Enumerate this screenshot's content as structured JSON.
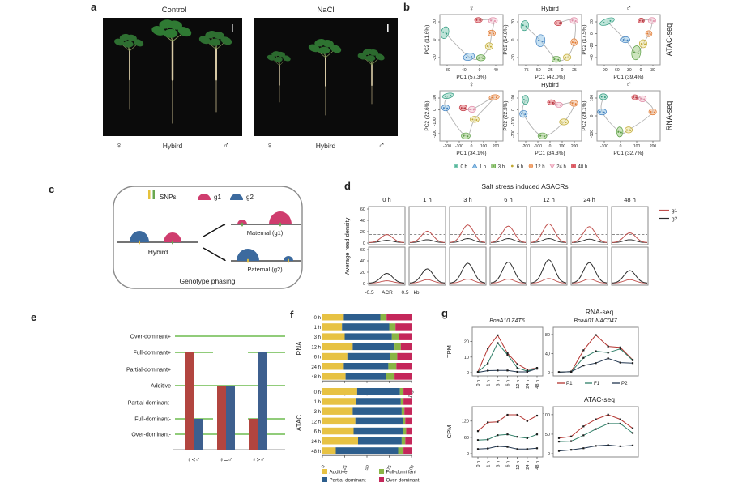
{
  "panels": {
    "a": "a",
    "b": "b",
    "c": "c",
    "d": "d",
    "e": "e",
    "f": "f",
    "g": "g"
  },
  "panel_a": {
    "photos": [
      {
        "title": "Control"
      },
      {
        "title": "NaCl"
      }
    ],
    "group_labels": [
      "♀",
      "Hybird",
      "♂"
    ]
  },
  "panel_b": {
    "row_labels": [
      "ATAC-seq",
      "RNA-seq"
    ]
  },
  "time_colors": [
    {
      "label": "0 h",
      "fill": "#7ecbb4",
      "dark": "#2f9a7f",
      "shape": "square"
    },
    {
      "label": "1 h",
      "fill": "#8ec3e8",
      "dark": "#3f7fbf",
      "shape": "triangle"
    },
    {
      "label": "3 h",
      "fill": "#9ccb7e",
      "dark": "#5a9e44",
      "shape": "square"
    },
    {
      "label": "6 h",
      "fill": "#ecdf8e",
      "dark": "#c0a832",
      "shape": "dot"
    },
    {
      "label": "12 h",
      "fill": "#f4ad7d",
      "dark": "#e07b33",
      "shape": "circle"
    },
    {
      "label": "24 h",
      "fill": "#f6c2d0",
      "dark": "#e08aa6",
      "shape": "triangle-down"
    },
    {
      "label": "48 h",
      "fill": "#e4636b",
      "dark": "#bf3640",
      "shape": "square"
    }
  ],
  "panel_c": {
    "legend": {
      "snps": "SNPs",
      "g1": "g1",
      "g2": "g2"
    },
    "hybrid_label": "Hybird",
    "maternal_label": "Maternal (g1)",
    "paternal_label": "Paternal (g2)",
    "caption": "Genotype phasing",
    "colors": {
      "g1": "#cf3d6e",
      "g2": "#3c6a9e",
      "snp_yellow": "#e6c23c",
      "snp_green": "#6aa84f"
    }
  },
  "panel_d": {
    "title": "Salt stress induced ASACRs",
    "ylabel": "Average read density",
    "timepoints": [
      "0 h",
      "1 h",
      "3 h",
      "6 h",
      "12 h",
      "24 h",
      "48 h"
    ],
    "yticks": [
      60,
      40,
      20,
      0
    ],
    "xaxis_parts": [
      "-0.5",
      "ACR",
      "0.5",
      "kb"
    ],
    "legend": [
      {
        "label": "g1",
        "color": "#c0504d"
      },
      {
        "label": "g2",
        "color": "#2b2b2b"
      }
    ]
  },
  "panel_f": {
    "row_labels": [
      "RNA",
      "ATAC"
    ]
  },
  "panel_g": {
    "title_rna": "RNA-seq",
    "title_atac": "ATAC-seq",
    "ylabel_rna": "TPM",
    "ylabel_atac": "CPM",
    "genes": [
      "BnaA10.ZAT6",
      "BnaA01.NAC047"
    ],
    "legend": [
      {
        "label": "P1",
        "color": "#b43430"
      },
      {
        "label": "F1",
        "color": "#2f7f68"
      },
      {
        "label": "P2",
        "color": "#233750"
      }
    ]
  },
  "chart_data": {
    "b_pca": {
      "type": "scatter",
      "legend_position": "bottom",
      "plots": [
        {
          "row": 0,
          "col": 0,
          "header": "♀",
          "xlabel": "PC1 (57.3%)",
          "ylabel": "PC2 (11.6%)",
          "xticks": [
            "-80",
            "-40",
            "0",
            "40"
          ],
          "yticks": [
            "20",
            "0",
            "-20"
          ],
          "clusters": [
            [
              0,
              0.08,
              0.36,
              0.06,
              0.12,
              15
            ],
            [
              1,
              0.46,
              0.84,
              0.09,
              0.07,
              -15
            ],
            [
              2,
              0.65,
              0.86,
              0.07,
              0.06,
              0
            ],
            [
              3,
              0.78,
              0.63,
              0.06,
              0.07,
              0
            ],
            [
              4,
              0.82,
              0.37,
              0.06,
              0.06,
              0
            ],
            [
              5,
              0.84,
              0.12,
              0.07,
              0.06,
              0
            ],
            [
              6,
              0.61,
              0.11,
              0.06,
              0.05,
              0
            ]
          ]
        },
        {
          "row": 0,
          "col": 1,
          "header": "Hybird",
          "xlabel": "PC1 (42.0%)",
          "ylabel": "PC2 (14.8%)",
          "xticks": [
            "-75",
            "-50",
            "-25",
            "0",
            "25"
          ],
          "yticks": [
            "20",
            "0",
            "-20"
          ],
          "clusters": [
            [
              0,
              0.1,
              0.22,
              0.06,
              0.1,
              10
            ],
            [
              1,
              0.35,
              0.52,
              0.07,
              0.12,
              5
            ],
            [
              2,
              0.6,
              0.89,
              0.07,
              0.06,
              0
            ],
            [
              3,
              0.77,
              0.85,
              0.06,
              0.06,
              0
            ],
            [
              4,
              0.88,
              0.55,
              0.05,
              0.07,
              0
            ],
            [
              5,
              0.88,
              0.12,
              0.06,
              0.06,
              0
            ],
            [
              6,
              0.63,
              0.17,
              0.06,
              0.05,
              0
            ]
          ]
        },
        {
          "row": 0,
          "col": 2,
          "header": "♂",
          "xlabel": "PC1 (39.4%)",
          "ylabel": "PC2 (17.5%)",
          "xticks": [
            "-90",
            "-60",
            "-30",
            "0",
            "30"
          ],
          "yticks": [
            "20",
            "0",
            "-20",
            "-40"
          ],
          "clusters": [
            [
              0,
              0.16,
              0.14,
              0.12,
              0.06,
              -20
            ],
            [
              1,
              0.45,
              0.5,
              0.07,
              0.06,
              0
            ],
            [
              2,
              0.62,
              0.76,
              0.07,
              0.14,
              8
            ],
            [
              3,
              0.73,
              0.58,
              0.06,
              0.08,
              0
            ],
            [
              4,
              0.82,
              0.38,
              0.05,
              0.06,
              0
            ],
            [
              5,
              0.87,
              0.12,
              0.06,
              0.06,
              0
            ],
            [
              6,
              0.7,
              0.12,
              0.05,
              0.05,
              0
            ]
          ]
        },
        {
          "row": 1,
          "col": 0,
          "header": "♀",
          "xlabel": "PC1 (34.1%)",
          "ylabel": "PC2 (22.6%)",
          "xticks": [
            "-200",
            "-100",
            "0",
            "100",
            "200"
          ],
          "yticks": [
            "100",
            "0",
            "-100",
            "-200"
          ],
          "clusters": [
            [
              0,
              0.13,
              0.1,
              0.09,
              0.05,
              -12
            ],
            [
              1,
              0.09,
              0.34,
              0.06,
              0.06,
              0
            ],
            [
              2,
              0.41,
              0.9,
              0.07,
              0.06,
              0
            ],
            [
              3,
              0.55,
              0.57,
              0.07,
              0.06,
              0
            ],
            [
              4,
              0.86,
              0.13,
              0.08,
              0.05,
              -8
            ],
            [
              5,
              0.51,
              0.37,
              0.06,
              0.06,
              0
            ],
            [
              6,
              0.37,
              0.34,
              0.06,
              0.06,
              0
            ]
          ]
        },
        {
          "row": 1,
          "col": 1,
          "header": "Hybird",
          "xlabel": "PC1 (34.3%)",
          "ylabel": "PC2 (22.3%)",
          "xticks": [
            "-200",
            "-100",
            "0",
            "100",
            "200"
          ],
          "yticks": [
            "100",
            "0",
            "-100",
            "-200"
          ],
          "clusters": [
            [
              0,
              0.11,
              0.18,
              0.05,
              0.09,
              0
            ],
            [
              1,
              0.08,
              0.46,
              0.06,
              0.07,
              0
            ],
            [
              2,
              0.38,
              0.9,
              0.07,
              0.06,
              0
            ],
            [
              3,
              0.72,
              0.62,
              0.07,
              0.06,
              0
            ],
            [
              4,
              0.88,
              0.25,
              0.06,
              0.06,
              0
            ],
            [
              5,
              0.64,
              0.28,
              0.06,
              0.05,
              0
            ],
            [
              6,
              0.52,
              0.23,
              0.06,
              0.05,
              0
            ]
          ]
        },
        {
          "row": 1,
          "col": 2,
          "header": "♂",
          "xlabel": "PC1 (32.7%)",
          "ylabel": "PC2 (20.1%)",
          "xticks": [
            "-100",
            "0",
            "100",
            "200"
          ],
          "yticks": [
            "100",
            "0",
            "-100"
          ],
          "clusters": [
            [
              0,
              0.1,
              0.12,
              0.06,
              0.06,
              0
            ],
            [
              1,
              0.08,
              0.42,
              0.07,
              0.06,
              0
            ],
            [
              2,
              0.36,
              0.82,
              0.05,
              0.1,
              0
            ],
            [
              3,
              0.5,
              0.78,
              0.06,
              0.06,
              0
            ],
            [
              4,
              0.88,
              0.42,
              0.06,
              0.06,
              0
            ],
            [
              5,
              0.72,
              0.16,
              0.06,
              0.06,
              0
            ],
            [
              6,
              0.6,
              0.13,
              0.05,
              0.05,
              0
            ]
          ]
        }
      ]
    },
    "d_profiles": {
      "type": "line",
      "ymax": 60,
      "dashed_y": 15,
      "rows": [
        {
          "name": "g1-biased",
          "g1": [
            14,
            20,
            31,
            29,
            33,
            28,
            17
          ],
          "g2": [
            4,
            5,
            7,
            7,
            7,
            6,
            5
          ]
        },
        {
          "name": "g2-biased",
          "g1": [
            4,
            6,
            7,
            7,
            8,
            7,
            6
          ],
          "g2": [
            17,
            25,
            35,
            37,
            41,
            36,
            22
          ]
        }
      ]
    },
    "e_dominance": {
      "type": "bar",
      "levels": [
        "Over-dominant+",
        "Full-dominant+",
        "Partial-dominant+",
        "Additive",
        "Partial-dominant-",
        "Full-dominant-",
        "Over-dominant-"
      ],
      "full_lines": [
        "Over-dominant+",
        "Additive",
        "Over-dominant-"
      ],
      "partial_lines": [
        "Full-dominant+",
        "Full-dominant-"
      ],
      "groups": [
        {
          "label": "♀<♂",
          "red": "Full-dominant+",
          "blue": "Full-dominant-"
        },
        {
          "label": "♀=♂",
          "red": "Additive",
          "blue": "Additive"
        },
        {
          "label": "♀>♂",
          "red": "Full-dominant-",
          "blue": "Full-dominant+"
        }
      ],
      "colors": {
        "red": "#b2453f",
        "blue": "#3d5f8e",
        "line": "#4fae2b"
      }
    },
    "f_stacked": {
      "type": "bar",
      "categories": [
        "0 h",
        "1 h",
        "3 h",
        "12 h",
        "6 h",
        "24 h",
        "48 h"
      ],
      "xticks": [
        0,
        25,
        50,
        75,
        100
      ],
      "segments": [
        {
          "label": "Additive",
          "color": "#e7c243"
        },
        {
          "label": "Partial-dominant",
          "color": "#2d5e8d"
        },
        {
          "label": "Full-dominant",
          "color": "#8ab545"
        },
        {
          "label": "Over-dominant",
          "color": "#c4275a"
        }
      ],
      "rna": [
        [
          24,
          41,
          7,
          28
        ],
        [
          22,
          53,
          7,
          18
        ],
        [
          25,
          53,
          8,
          14
        ],
        [
          34,
          47,
          7,
          12
        ],
        [
          28,
          48,
          8,
          16
        ],
        [
          24,
          50,
          9,
          17
        ],
        [
          26,
          45,
          10,
          19
        ]
      ],
      "atac": [
        [
          39,
          48,
          4,
          9
        ],
        [
          38,
          50,
          3,
          9
        ],
        [
          34,
          55,
          3,
          8
        ],
        [
          37,
          53,
          3,
          7
        ],
        [
          35,
          55,
          4,
          6
        ],
        [
          40,
          49,
          4,
          7
        ],
        [
          15,
          70,
          6,
          9
        ]
      ]
    },
    "g_lines": {
      "type": "line",
      "x": [
        "0 h",
        "1 h",
        "3 h",
        "6 h",
        "12 h",
        "24 h",
        "48 h"
      ],
      "rna": [
        {
          "gene": "BnaA10.ZAT6",
          "yticks": [
            20,
            10,
            0
          ],
          "ymax": 26,
          "P1": [
            0.5,
            15.5,
            24,
            12.5,
            5.5,
            2,
            3
          ],
          "F1": [
            0.3,
            6,
            19,
            11.5,
            3,
            1,
            3
          ],
          "P2": [
            0.2,
            1.3,
            1.4,
            1.4,
            0.5,
            0.5,
            2.5
          ],
          "xlabels": true,
          "legend": false
        },
        {
          "gene": "BnaA01.NAC047",
          "yticks": [
            80,
            40,
            0
          ],
          "ymax": 85,
          "P1": [
            1,
            2,
            47,
            79,
            55,
            53,
            27
          ],
          "F1": [
            1,
            2,
            31,
            45,
            42,
            50,
            26
          ],
          "P2": [
            1,
            2,
            15,
            20,
            30,
            21,
            20
          ],
          "xlabels": false,
          "legend": true
        }
      ],
      "atac": [
        {
          "yticks": [
            120,
            60,
            0
          ],
          "ymax": 155,
          "P1": [
            83,
            115,
            117,
            143,
            143,
            120,
            140
          ],
          "F1": [
            50,
            52,
            68,
            71,
            62,
            57,
            71
          ],
          "P2": [
            17,
            19,
            27,
            25,
            17,
            17,
            20
          ],
          "xlabels": true,
          "legend": false
        },
        {
          "yticks": [
            100,
            50,
            0
          ],
          "ymax": 108,
          "P1": [
            40,
            44,
            70,
            88,
            100,
            88,
            65
          ],
          "F1": [
            31,
            32,
            47,
            63,
            77,
            77,
            53
          ],
          "P2": [
            7,
            10,
            14,
            20,
            22,
            19,
            21
          ],
          "xlabels": false,
          "legend": false
        }
      ]
    }
  }
}
